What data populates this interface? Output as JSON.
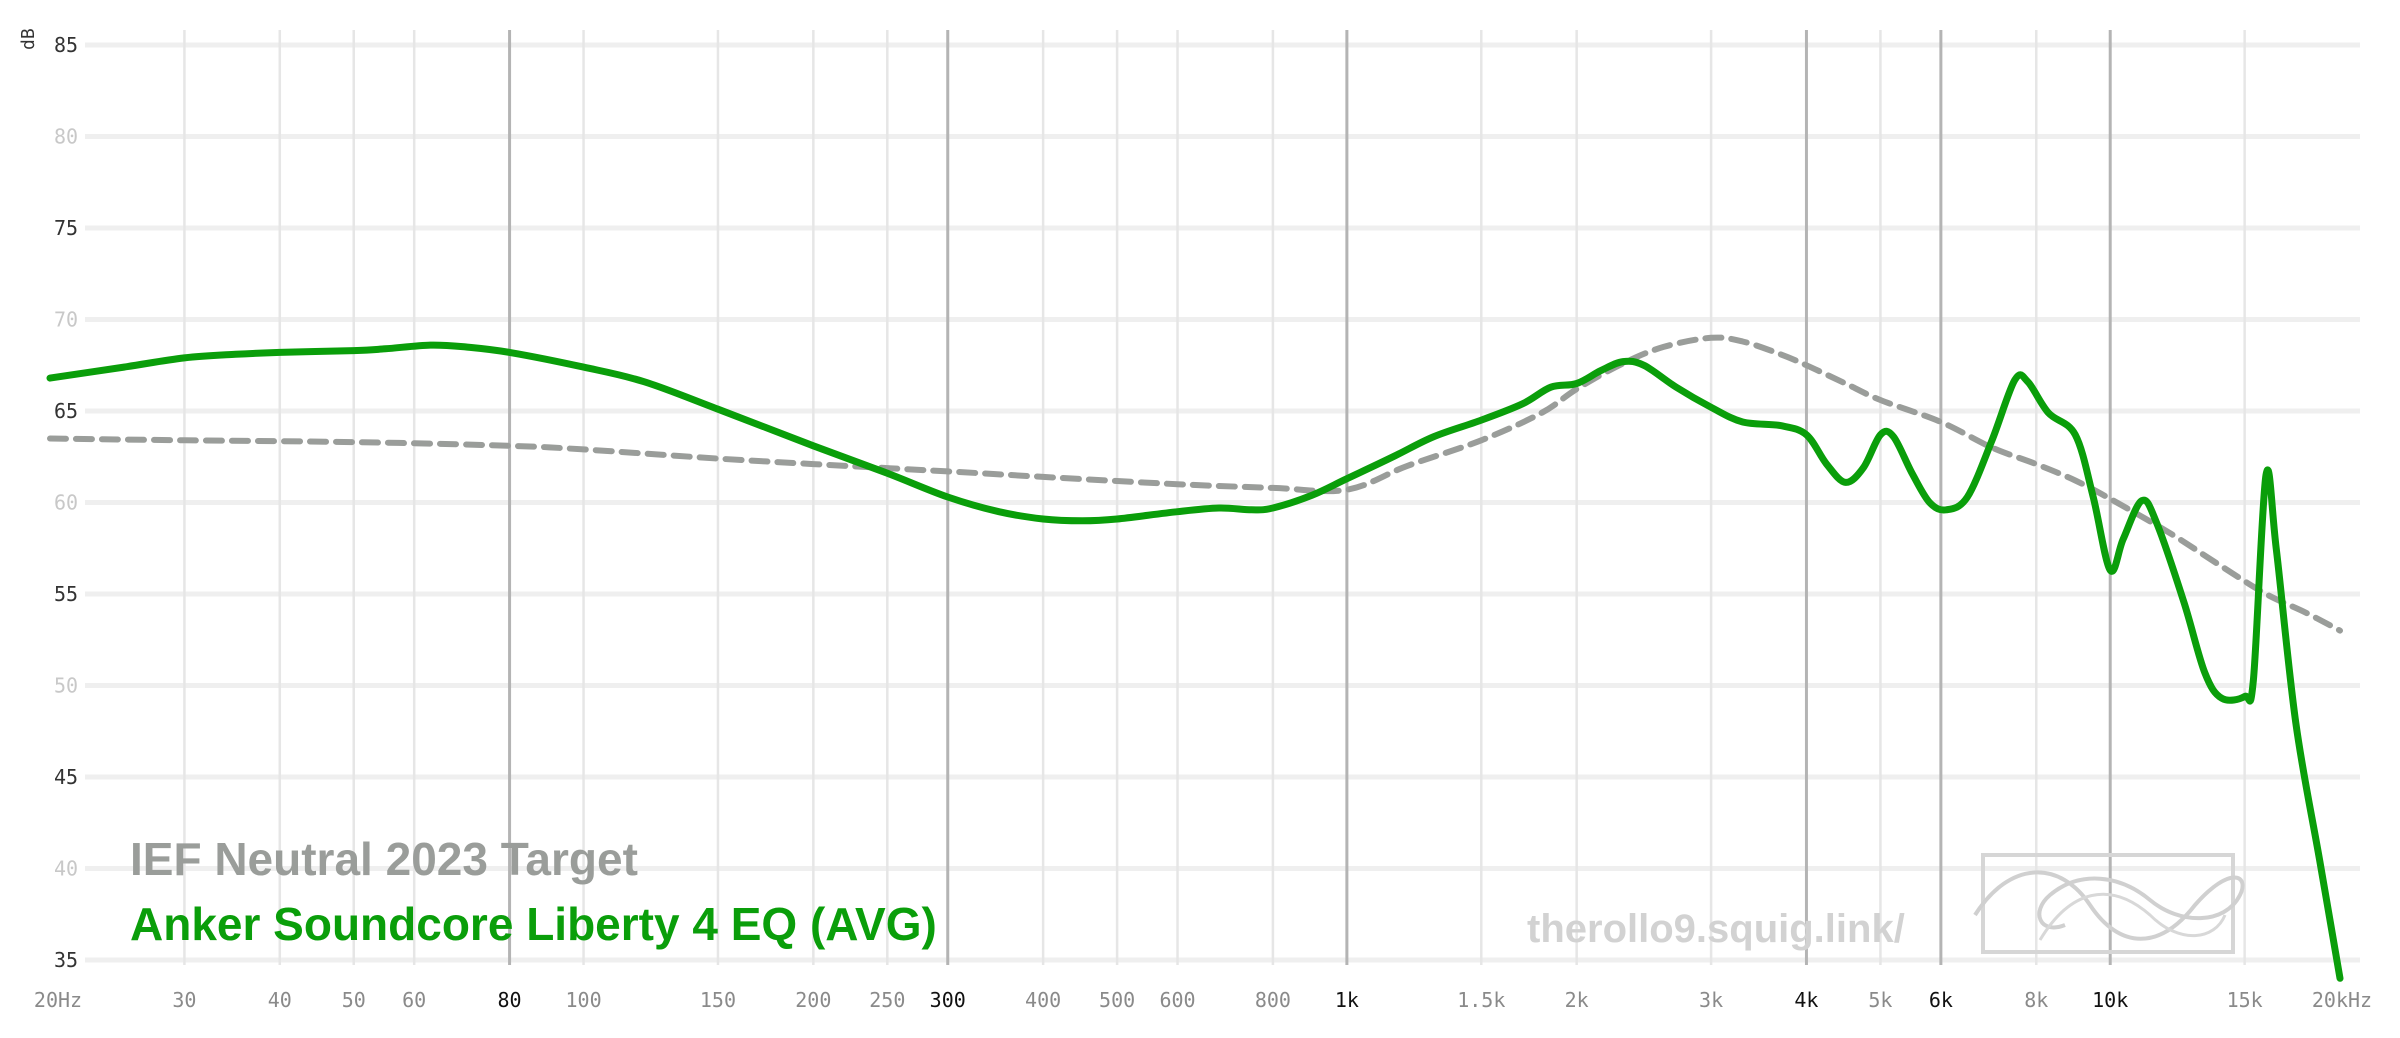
{
  "chart_data": {
    "type": "line",
    "ylabel": "dB",
    "xlabel": "",
    "x_scale": "log",
    "xlim": [
      20,
      20000
    ],
    "ylim": [
      35,
      85
    ],
    "grid": true,
    "y_ticks": [
      {
        "value": 85,
        "label": "85",
        "major": true
      },
      {
        "value": 80,
        "label": "80",
        "major": false
      },
      {
        "value": 75,
        "label": "75",
        "major": true
      },
      {
        "value": 70,
        "label": "70",
        "major": false
      },
      {
        "value": 65,
        "label": "65",
        "major": true
      },
      {
        "value": 60,
        "label": "60",
        "major": false
      },
      {
        "value": 55,
        "label": "55",
        "major": true
      },
      {
        "value": 50,
        "label": "50",
        "major": false
      },
      {
        "value": 45,
        "label": "45",
        "major": true
      },
      {
        "value": 40,
        "label": "40",
        "major": false
      },
      {
        "value": 35,
        "label": "35",
        "major": true
      }
    ],
    "x_ticks": [
      {
        "value": 20,
        "label": "20Hz",
        "major": false
      },
      {
        "value": 30,
        "label": "30",
        "major": false
      },
      {
        "value": 40,
        "label": "40",
        "major": false
      },
      {
        "value": 50,
        "label": "50",
        "major": false
      },
      {
        "value": 60,
        "label": "60",
        "major": false
      },
      {
        "value": 80,
        "label": "80",
        "major": true
      },
      {
        "value": 100,
        "label": "100",
        "major": false
      },
      {
        "value": 150,
        "label": "150",
        "major": false
      },
      {
        "value": 200,
        "label": "200",
        "major": false
      },
      {
        "value": 250,
        "label": "250",
        "major": false
      },
      {
        "value": 300,
        "label": "300",
        "major": true
      },
      {
        "value": 400,
        "label": "400",
        "major": false
      },
      {
        "value": 500,
        "label": "500",
        "major": false
      },
      {
        "value": 600,
        "label": "600",
        "major": false
      },
      {
        "value": 800,
        "label": "800",
        "major": false
      },
      {
        "value": 1000,
        "label": "1k",
        "major": true
      },
      {
        "value": 1500,
        "label": "1.5k",
        "major": false
      },
      {
        "value": 2000,
        "label": "2k",
        "major": false
      },
      {
        "value": 3000,
        "label": "3k",
        "major": false
      },
      {
        "value": 4000,
        "label": "4k",
        "major": true
      },
      {
        "value": 5000,
        "label": "5k",
        "major": false
      },
      {
        "value": 6000,
        "label": "6k",
        "major": true
      },
      {
        "value": 8000,
        "label": "8k",
        "major": false
      },
      {
        "value": 10000,
        "label": "10k",
        "major": true
      },
      {
        "value": 15000,
        "label": "15k",
        "major": false
      },
      {
        "value": 20000,
        "label": "20kHz",
        "major": false
      }
    ],
    "series": [
      {
        "name": "IEF Neutral 2023 Target",
        "color": "#9a9d9a",
        "dash": true,
        "points": [
          [
            20,
            63.5
          ],
          [
            30,
            63.4
          ],
          [
            50,
            63.3
          ],
          [
            80,
            63.1
          ],
          [
            100,
            62.9
          ],
          [
            150,
            62.4
          ],
          [
            200,
            62.1
          ],
          [
            300,
            61.7
          ],
          [
            400,
            61.4
          ],
          [
            600,
            61.0
          ],
          [
            800,
            60.8
          ],
          [
            1000,
            60.7
          ],
          [
            1200,
            62.0
          ],
          [
            1500,
            63.4
          ],
          [
            1800,
            64.9
          ],
          [
            2000,
            66.2
          ],
          [
            2300,
            67.6
          ],
          [
            2600,
            68.5
          ],
          [
            3000,
            69.0
          ],
          [
            3300,
            68.8
          ],
          [
            3700,
            68.1
          ],
          [
            4000,
            67.5
          ],
          [
            4500,
            66.5
          ],
          [
            5000,
            65.6
          ],
          [
            6000,
            64.4
          ],
          [
            7000,
            63.0
          ],
          [
            8000,
            62.1
          ],
          [
            9000,
            61.2
          ],
          [
            10000,
            60.2
          ],
          [
            12000,
            58.3
          ],
          [
            14000,
            56.5
          ],
          [
            16000,
            55.0
          ],
          [
            18000,
            54.0
          ],
          [
            20000,
            53.0
          ]
        ]
      },
      {
        "name": "Anker Soundcore Liberty 4 EQ (AVG)",
        "color": "#0a9e0a",
        "dash": false,
        "points": [
          [
            20,
            66.8
          ],
          [
            25,
            67.4
          ],
          [
            30,
            67.9
          ],
          [
            35,
            68.1
          ],
          [
            40,
            68.2
          ],
          [
            50,
            68.3
          ],
          [
            55,
            68.4
          ],
          [
            63,
            68.6
          ],
          [
            70,
            68.5
          ],
          [
            80,
            68.2
          ],
          [
            100,
            67.4
          ],
          [
            120,
            66.6
          ],
          [
            150,
            65.1
          ],
          [
            200,
            63.1
          ],
          [
            250,
            61.6
          ],
          [
            300,
            60.3
          ],
          [
            350,
            59.5
          ],
          [
            400,
            59.1
          ],
          [
            450,
            59.0
          ],
          [
            500,
            59.1
          ],
          [
            600,
            59.5
          ],
          [
            680,
            59.7
          ],
          [
            750,
            59.6
          ],
          [
            800,
            59.7
          ],
          [
            900,
            60.4
          ],
          [
            1000,
            61.3
          ],
          [
            1150,
            62.5
          ],
          [
            1300,
            63.6
          ],
          [
            1500,
            64.5
          ],
          [
            1700,
            65.4
          ],
          [
            1850,
            66.3
          ],
          [
            2000,
            66.5
          ],
          [
            2150,
            67.2
          ],
          [
            2300,
            67.7
          ],
          [
            2450,
            67.5
          ],
          [
            2700,
            66.3
          ],
          [
            3000,
            65.2
          ],
          [
            3300,
            64.4
          ],
          [
            3700,
            64.2
          ],
          [
            4000,
            63.7
          ],
          [
            4250,
            62.1
          ],
          [
            4500,
            61.1
          ],
          [
            4750,
            61.9
          ],
          [
            5000,
            63.7
          ],
          [
            5200,
            63.6
          ],
          [
            5500,
            61.6
          ],
          [
            5800,
            60.0
          ],
          [
            6100,
            59.6
          ],
          [
            6500,
            60.3
          ],
          [
            7000,
            63.4
          ],
          [
            7500,
            66.7
          ],
          [
            7800,
            66.6
          ],
          [
            8300,
            64.9
          ],
          [
            9000,
            63.7
          ],
          [
            9500,
            60.3
          ],
          [
            10000,
            56.3
          ],
          [
            10400,
            58.0
          ],
          [
            11000,
            60.1
          ],
          [
            11500,
            58.9
          ],
          [
            12500,
            54.5
          ],
          [
            13300,
            50.7
          ],
          [
            14000,
            49.3
          ],
          [
            15000,
            49.4
          ],
          [
            15400,
            50.3
          ],
          [
            16000,
            61.5
          ],
          [
            16500,
            57.5
          ],
          [
            17500,
            48.0
          ],
          [
            18800,
            40.5
          ],
          [
            20000,
            34.0
          ]
        ]
      }
    ]
  },
  "legend": {
    "placement": "bottom-left",
    "entries": [
      {
        "label": "IEF Neutral 2023 Target",
        "color": "#9a9d9a"
      },
      {
        "label": "Anker Soundcore Liberty 4 EQ (AVG)",
        "color": "#0a9e0a"
      }
    ]
  },
  "watermark": {
    "text": "therollo9.squig.link/",
    "logo_icon": "squiglink-logo-icon"
  }
}
